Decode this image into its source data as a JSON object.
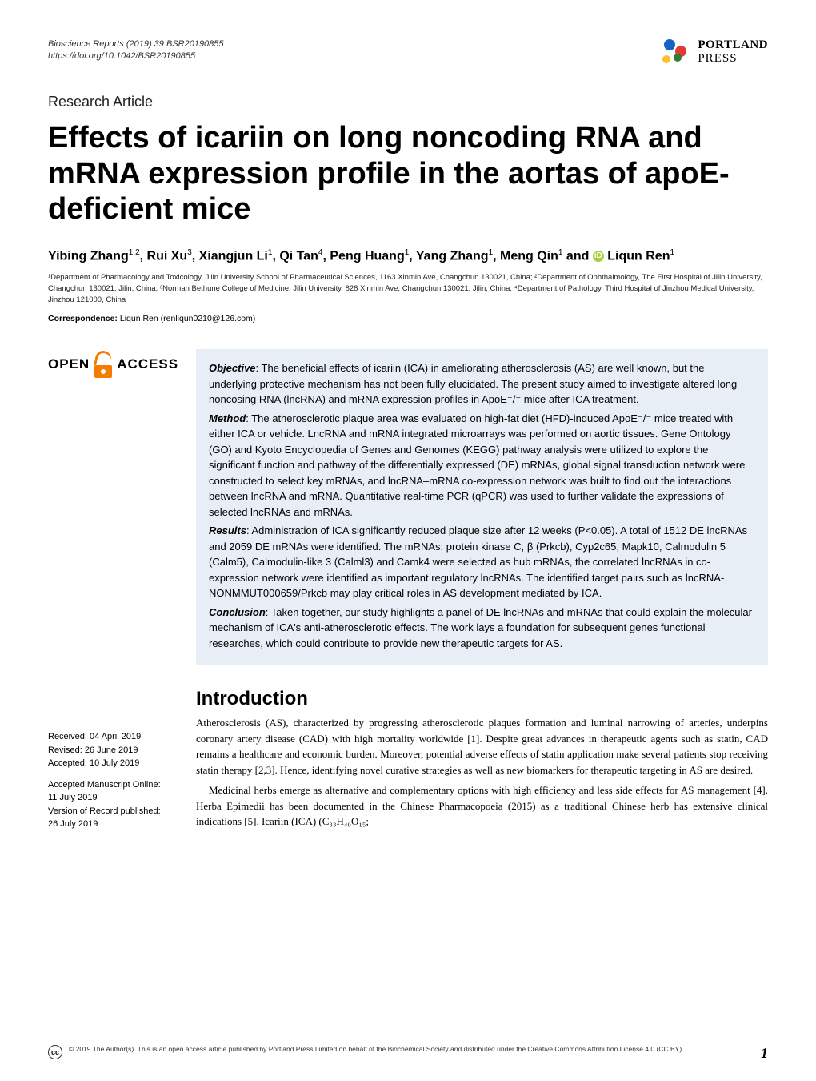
{
  "meta": {
    "journal_line": "Bioscience Reports (2019) 39 BSR20190855",
    "doi_line": "https://doi.org/10.1042/BSR20190855"
  },
  "logo": {
    "line1": "PORTLAND",
    "line2": "PRESS"
  },
  "section_label": "Research Article",
  "title": "Effects of icariin on long noncoding RNA and mRNA expression profile in the aortas of apoE-deficient mice",
  "authors_html": "Yibing Zhang<sup>1,2</sup>, Rui Xu<sup>3</sup>, Xiangjun Li<sup>1</sup>, Qi Tan<sup>4</sup>, Peng Huang<sup>1</sup>, Yang Zhang<sup>1</sup>, Meng Qin<sup>1</sup> and <span class='orcid-icon'>iD</span> Liqun Ren<sup>1</sup>",
  "affiliations": "¹Department of Pharmacology and Toxicology, Jilin University School of Pharmaceutical Sciences, 1163 Xinmin Ave, Changchun 130021, China; ²Department of Ophthalmology, The First Hospital of Jilin University, Changchun 130021, Jilin, China; ³Norman Bethune College of Medicine, Jilin University, 828 Xinmin Ave, Changchun 130021, Jilin, China; ⁴Department of Pathology, Third Hospital of Jinzhou Medical University, Jinzhou 121000, China",
  "correspondence_label": "Correspondence:",
  "correspondence_text": " Liqun Ren (renliqun0210@126.com)",
  "open_access": {
    "word1": "OPEN",
    "word2": "ACCESS"
  },
  "abstract": {
    "objective_label": "Objective",
    "objective": ": The beneficial effects of icariin (ICA) in ameliorating atherosclerosis (AS) are well known, but the underlying protective mechanism has not been fully elucidated. The present study aimed to investigate altered long noncosing RNA (lncRNA) and mRNA expression profiles in ApoE⁻/⁻ mice after ICA treatment.",
    "method_label": "Method",
    "method": ": The atherosclerotic plaque area was evaluated on high-fat diet (HFD)-induced ApoE⁻/⁻ mice treated with either ICA or vehicle. LncRNA and mRNA integrated microarrays was performed on aortic tissues. Gene Ontology (GO) and Kyoto Encyclopedia of Genes and Genomes (KEGG) pathway analysis were utilized to explore the significant function and pathway of the differentially expressed (DE) mRNAs, global signal transduction network were constructed to select key mRNAs, and lncRNA–mRNA co-expression network was built to find out the interactions between lncRNA and mRNA. Quantitative real-time PCR (qPCR) was used to further validate the expressions of selected lncRNAs and mRNAs.",
    "results_label": "Results",
    "results": ": Administration of ICA significantly reduced plaque size after 12 weeks (P<0.05). A total of 1512 DE lncRNAs and 2059 DE mRNAs were identified. The mRNAs: protein kinase C, β (Prkcb), Cyp2c65, Mapk10, Calmodulin 5 (Calm5), Calmodulin-like 3 (Calml3) and Camk4 were selected as hub mRNAs, the correlated lncRNAs in co-expression network were identified as important regulatory lncRNAs. The identified target pairs such as lncRNA-NONMMUT000659/Prkcb may play critical roles in AS development mediated by ICA.",
    "conclusion_label": "Conclusion",
    "conclusion": ": Taken together, our study highlights a panel of DE lncRNAs and mRNAs that could explain the molecular mechanism of ICA's anti-atherosclerotic effects. The work lays a foundation for subsequent genes functional researches, which could contribute to provide new therapeutic targets for AS."
  },
  "intro": {
    "heading": "Introduction",
    "p1": "Atherosclerosis (AS), characterized by progressing atherosclerotic plaques formation and luminal narrowing of arteries, underpins coronary artery disease (CAD) with high mortality worldwide [1]. Despite great advances in therapeutic agents such as statin, CAD remains a healthcare and economic burden. Moreover, potential adverse effects of statin application make several patients stop receiving statin therapy [2,3]. Hence, identifying novel curative strategies as well as new biomarkers for therapeutic targeting in AS are desired.",
    "p2": "Medicinal herbs emerge as alternative and complementary options with high efficiency and less side effects for AS management [4]. Herba Epimedii has been documented in the Chinese Pharmacopoeia (2015) as a traditional Chinese herb has extensive clinical indications [5]. Icariin (ICA) (C₃₃H₄₀O₁₅;"
  },
  "dates": {
    "received": "Received: 04 April 2019",
    "revised": "Revised: 26 June 2019",
    "accepted": "Accepted: 10 July 2019",
    "online_label": "Accepted Manuscript Online:",
    "online_date": "11 July 2019",
    "vor_label": "Version of Record published:",
    "vor_date": "26 July 2019"
  },
  "footer": {
    "cc": "cc",
    "text": "© 2019 The Author(s). This is an open access article published by Portland Press Limited on behalf of the Biochemical Society and distributed under the Creative Commons Attribution License 4.0 (CC BY).",
    "page": "1"
  }
}
